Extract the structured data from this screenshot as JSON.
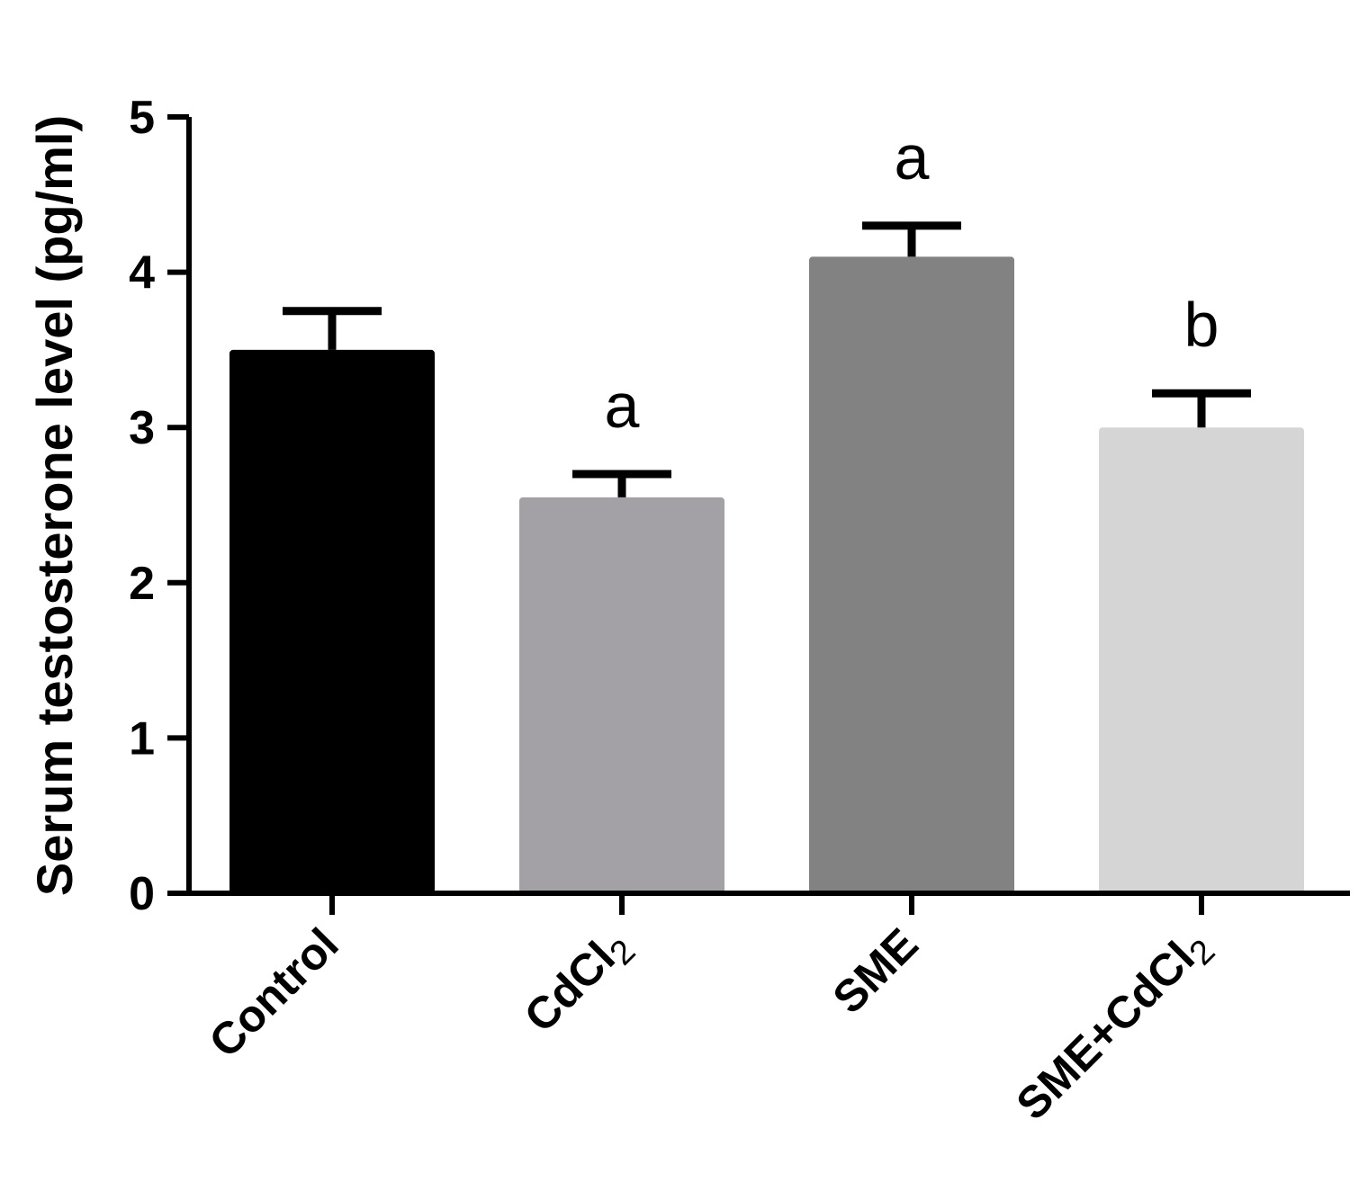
{
  "chart_data": {
    "type": "bar",
    "categories": [
      "Control",
      "CdCl2",
      "SME",
      "SME+CdCl2"
    ],
    "category_labels": [
      {
        "main": "Control",
        "sub": ""
      },
      {
        "main": "CdCl",
        "sub": "2"
      },
      {
        "main": "SME",
        "sub": ""
      },
      {
        "main": "SME+CdCl",
        "sub": "2"
      }
    ],
    "values": [
      3.5,
      2.55,
      4.1,
      3.0
    ],
    "errors": [
      0.25,
      0.15,
      0.2,
      0.22
    ],
    "significance": [
      "",
      "a",
      "a",
      "b"
    ],
    "colors": [
      "#000000",
      "#a3a1a6",
      "#828282",
      "#d5d5d5"
    ],
    "ylabel": "Serum testosterone level (pg/ml)",
    "xlabel": "",
    "ylim": [
      0,
      5
    ],
    "yticks": [
      0,
      1,
      2,
      3,
      4,
      5
    ],
    "grid": false
  }
}
